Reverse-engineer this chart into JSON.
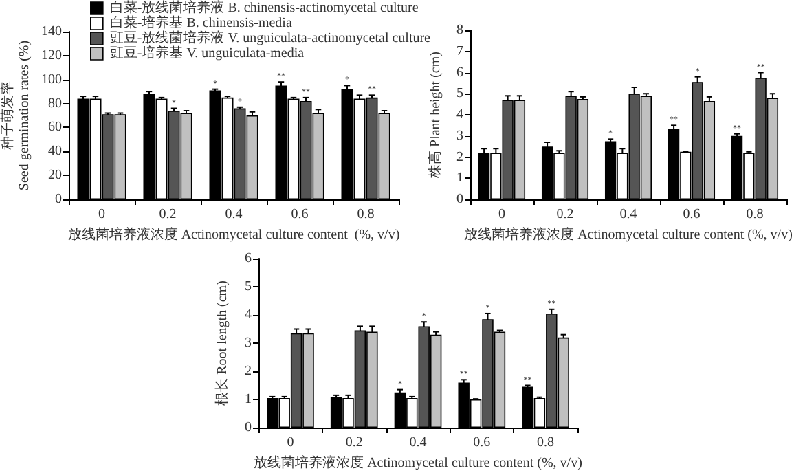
{
  "chart_data": [
    {
      "type": "bar",
      "categories": [
        "0",
        "0.2",
        "0.4",
        "0.6",
        "0.8"
      ],
      "xlabel": "放线菌培养液浓度 Actinomycetal culture content  (%, v/v)",
      "ylabel": "种子萌发率\nSeed germination rates (%)",
      "ylim": [
        0,
        140
      ],
      "yticks": [
        0,
        20,
        40,
        60,
        80,
        100,
        120,
        140
      ],
      "legend": "top right",
      "series": [
        {
          "name": "白菜-放线菌培养液 B. chinensis-actinomycetal culture",
          "color": "#000000",
          "values": [
            84,
            88,
            91,
            95,
            92
          ],
          "errors": [
            2,
            2,
            1,
            3,
            3
          ],
          "value_labels": [
            null,
            null,
            "*",
            "**",
            "*"
          ]
        },
        {
          "name": "白菜-培养基 B. chinensis-media",
          "color": "#ffffff",
          "values": [
            84,
            84,
            85,
            84,
            84
          ],
          "errors": [
            2,
            1,
            1,
            1,
            3
          ]
        },
        {
          "name": "豇豆-放线菌培养液 V. unguiculata-actinomycetal culture",
          "color": "#555555",
          "values": [
            71,
            74,
            76,
            82,
            85
          ],
          "errors": [
            1,
            2,
            1,
            3,
            2
          ],
          "value_labels": [
            null,
            "*",
            "*",
            "**",
            "**"
          ]
        },
        {
          "name": "豇豆-培养基 V. unguiculata-media",
          "color": "#c0c0c0",
          "values": [
            71,
            72,
            70,
            72,
            72
          ],
          "errors": [
            1,
            2,
            3,
            3,
            2
          ]
        }
      ]
    },
    {
      "type": "bar",
      "categories": [
        "0",
        "0.2",
        "0.4",
        "0.6",
        "0.8"
      ],
      "xlabel": "放线菌培养液浓度 Actinomycetal culture content (%, v/v)",
      "ylabel": "株高 Plant height (cm)",
      "ylim": [
        0,
        8
      ],
      "yticks": [
        0,
        1,
        2,
        3,
        4,
        5,
        6,
        7,
        8
      ],
      "series": [
        {
          "color": "#000000",
          "values": [
            2.2,
            2.5,
            2.75,
            3.35,
            3.0
          ],
          "errors": [
            0.2,
            0.2,
            0.1,
            0.15,
            0.1
          ],
          "value_labels": [
            null,
            null,
            "*",
            "**",
            "**"
          ]
        },
        {
          "color": "#ffffff",
          "values": [
            2.2,
            2.2,
            2.2,
            2.25,
            2.2
          ],
          "errors": [
            0.2,
            0.1,
            0.2,
            0.02,
            0.05
          ]
        },
        {
          "color": "#555555",
          "values": [
            4.7,
            4.9,
            5.0,
            5.55,
            5.75
          ],
          "errors": [
            0.2,
            0.2,
            0.3,
            0.25,
            0.25
          ],
          "value_labels": [
            null,
            null,
            null,
            "*",
            "**"
          ]
        },
        {
          "color": "#c0c0c0",
          "values": [
            4.7,
            4.75,
            4.9,
            4.65,
            4.8
          ],
          "errors": [
            0.2,
            0.1,
            0.1,
            0.2,
            0.2
          ]
        }
      ]
    },
    {
      "type": "bar",
      "categories": [
        "0",
        "0.2",
        "0.4",
        "0.6",
        "0.8"
      ],
      "xlabel": "放线菌培养液浓度 Actinomycetal culture content (%, v/v)",
      "ylabel": "根长 Root length (cm)",
      "ylim": [
        0,
        6
      ],
      "yticks": [
        0,
        1,
        2,
        3,
        4,
        5,
        6
      ],
      "series": [
        {
          "color": "#000000",
          "values": [
            1.05,
            1.1,
            1.25,
            1.6,
            1.45
          ],
          "errors": [
            0.05,
            0.05,
            0.1,
            0.1,
            0.05
          ],
          "value_labels": [
            null,
            null,
            "*",
            "**",
            "**"
          ]
        },
        {
          "color": "#ffffff",
          "values": [
            1.05,
            1.05,
            1.05,
            1.0,
            1.05
          ],
          "errors": [
            0.05,
            0.1,
            0.05,
            0.02,
            0.03
          ]
        },
        {
          "color": "#555555",
          "values": [
            3.35,
            3.45,
            3.6,
            3.85,
            4.05
          ],
          "errors": [
            0.15,
            0.15,
            0.15,
            0.2,
            0.15
          ],
          "value_labels": [
            null,
            null,
            "*",
            "*",
            "**"
          ]
        },
        {
          "color": "#c0c0c0",
          "values": [
            3.35,
            3.4,
            3.3,
            3.4,
            3.2
          ],
          "errors": [
            0.15,
            0.2,
            0.1,
            0.05,
            0.1
          ]
        }
      ]
    }
  ]
}
